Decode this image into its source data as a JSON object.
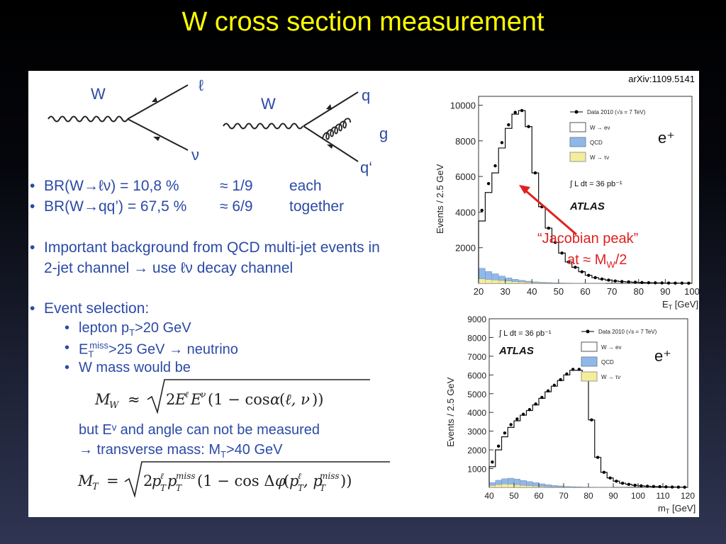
{
  "slide": {
    "title": "W cross section measurement",
    "arxiv": "arXiv:1109.5141"
  },
  "diagrams": {
    "left": {
      "boson": "W",
      "top": "ℓ",
      "bottom": "ν"
    },
    "right": {
      "boson": "W",
      "top": "q",
      "gluon": "g",
      "bottom": "q‘"
    }
  },
  "bullets": {
    "br1": {
      "label": "BR(W→ℓν) = 10,8 %",
      "ratio": "≈ 1/9",
      "note": "each"
    },
    "br2": {
      "label": "BR(W→qq’)  = 67,5 %",
      "ratio": "≈ 6/9",
      "note": "together"
    },
    "bg_line1": "Important background from QCD multi-jet events in",
    "bg_line2": "2-jet channel → use ℓν decay channel",
    "sel_header": "Event selection:",
    "sel_lepton_pre": "lepton p",
    "sel_lepton_sub": "T",
    "sel_lepton_post": ">20 GeV",
    "sel_met_pre": "E",
    "sel_met_sub": "T",
    "sel_met_sup": "miss",
    "sel_met_post": ">25 GeV → neutrino",
    "sel_mass": "W mass would be",
    "but_line": "but Eᵛ and angle can not be measured",
    "mt_line_pre": "→ transverse mass: M",
    "mt_line_sub": "T",
    "mt_line_post": ">40 GeV"
  },
  "annotation": {
    "line1": "“Jacobian peak”",
    "line2_pre": "at ≈ M",
    "line2_sub": "W",
    "line2_post": "/2",
    "color": "#e02020"
  },
  "chart_data": [
    {
      "type": "bar",
      "xlabel": "E_T [GeV]",
      "ylabel": "Events / 2.5 GeV",
      "xlim": [
        20,
        100
      ],
      "ylim": [
        0,
        10500
      ],
      "xticks": [
        20,
        30,
        40,
        50,
        60,
        70,
        80,
        90,
        100
      ],
      "yticks": [
        2000,
        4000,
        6000,
        8000,
        10000
      ],
      "x": [
        21.25,
        23.75,
        26.25,
        28.75,
        31.25,
        33.75,
        36.25,
        38.75,
        41.25,
        43.75,
        46.25,
        48.75,
        51.25,
        53.75,
        56.25,
        58.75,
        61.25,
        63.75,
        66.25,
        68.75,
        71.25,
        73.75,
        76.25,
        78.75,
        81.25,
        83.75,
        86.25,
        88.75,
        91.25,
        93.75,
        96.25,
        98.75
      ],
      "series": [
        {
          "name": "Data 2010 (√s = 7 TeV)",
          "values": [
            4100,
            5600,
            6600,
            7900,
            8900,
            9600,
            9700,
            8800,
            6200,
            4300,
            3100,
            2300,
            1700,
            1200,
            900,
            650,
            450,
            320,
            240,
            180,
            130,
            100,
            80,
            60,
            45,
            35,
            28,
            22,
            18,
            14,
            11,
            9
          ]
        },
        {
          "name": "W → eν",
          "values": [
            3500,
            5100,
            6200,
            7600,
            8700,
            9500,
            9700,
            8800,
            6200,
            4300,
            3100,
            2300,
            1700,
            1200,
            900,
            650,
            450,
            320,
            240,
            180,
            130,
            100,
            80,
            60,
            45,
            35,
            28,
            22,
            18,
            14,
            11,
            9
          ]
        },
        {
          "name": "QCD",
          "values": [
            600,
            450,
            350,
            250,
            180,
            130,
            90,
            60,
            45,
            35,
            25,
            18,
            12,
            8,
            5,
            3,
            2,
            1,
            1,
            0,
            0,
            0,
            0,
            0,
            0,
            0,
            0,
            0,
            0,
            0,
            0,
            0
          ]
        },
        {
          "name": "W → τν",
          "values": [
            250,
            220,
            190,
            160,
            130,
            100,
            80,
            60,
            40,
            28,
            20,
            14,
            10,
            7,
            5,
            3,
            2,
            1,
            1,
            0,
            0,
            0,
            0,
            0,
            0,
            0,
            0,
            0,
            0,
            0,
            0,
            0
          ]
        }
      ],
      "legend": [
        "Data 2010 (√s = 7 TeV)",
        "W → eν",
        "QCD",
        "W → τν"
      ],
      "annotations": [
        "e⁺",
        "∫ L dt = 36 pb⁻¹",
        "ATLAS"
      ]
    },
    {
      "type": "bar",
      "xlabel": "m_T [GeV]",
      "ylabel": "Events / 2.5 GeV",
      "xlim": [
        40,
        120
      ],
      "ylim": [
        0,
        9000
      ],
      "xticks": [
        40,
        50,
        60,
        70,
        80,
        90,
        100,
        110,
        120
      ],
      "yticks": [
        1000,
        2000,
        3000,
        4000,
        5000,
        6000,
        7000,
        8000,
        9000
      ],
      "x": [
        41.25,
        43.75,
        46.25,
        48.75,
        51.25,
        53.75,
        56.25,
        58.75,
        61.25,
        63.75,
        66.25,
        68.75,
        71.25,
        73.75,
        76.25,
        78.75,
        81.25,
        83.75,
        86.25,
        88.75,
        91.25,
        93.75,
        96.25,
        98.75,
        101.25,
        103.75,
        106.25,
        108.75,
        111.25,
        113.75,
        116.25,
        118.75
      ],
      "series": [
        {
          "name": "Data 2010 (√s = 7 TeV)",
          "values": [
            1350,
            2200,
            2900,
            3350,
            3650,
            3900,
            4150,
            4450,
            4800,
            5150,
            5450,
            5750,
            6050,
            6300,
            6300,
            5800,
            3600,
            1600,
            800,
            500,
            330,
            220,
            160,
            110,
            80,
            60,
            45,
            35,
            25,
            18,
            12,
            8
          ]
        },
        {
          "name": "W → eν",
          "values": [
            1100,
            2000,
            2700,
            3200,
            3550,
            3850,
            4100,
            4400,
            4750,
            5100,
            5400,
            5700,
            6000,
            6250,
            6250,
            5800,
            3600,
            1600,
            800,
            500,
            330,
            220,
            160,
            110,
            80,
            60,
            45,
            35,
            25,
            18,
            12,
            8
          ]
        },
        {
          "name": "QCD",
          "values": [
            150,
            230,
            280,
            320,
            300,
            260,
            220,
            180,
            140,
            110,
            80,
            60,
            40,
            30,
            20,
            15,
            10,
            6,
            4,
            2,
            1,
            1,
            0,
            0,
            0,
            0,
            0,
            0,
            0,
            0,
            0,
            0
          ]
        },
        {
          "name": "W → τν",
          "values": [
            100,
            150,
            180,
            170,
            140,
            110,
            90,
            70,
            50,
            35,
            25,
            18,
            12,
            8,
            6,
            4,
            3,
            2,
            1,
            1,
            0,
            0,
            0,
            0,
            0,
            0,
            0,
            0,
            0,
            0,
            0,
            0
          ]
        }
      ],
      "legend": [
        "Data 2010 (√s = 7 TeV)",
        "W → eν",
        "QCD",
        "W → τν"
      ],
      "annotations": [
        "e⁺",
        "∫ L dt = 36 pb⁻¹",
        "ATLAS"
      ]
    }
  ],
  "colors": {
    "title": "#ffff00",
    "text": "#2b4aa6",
    "qcd": "#8fb8ea",
    "wtaunu": "#f4ee9a",
    "arrow": "#e02020"
  }
}
